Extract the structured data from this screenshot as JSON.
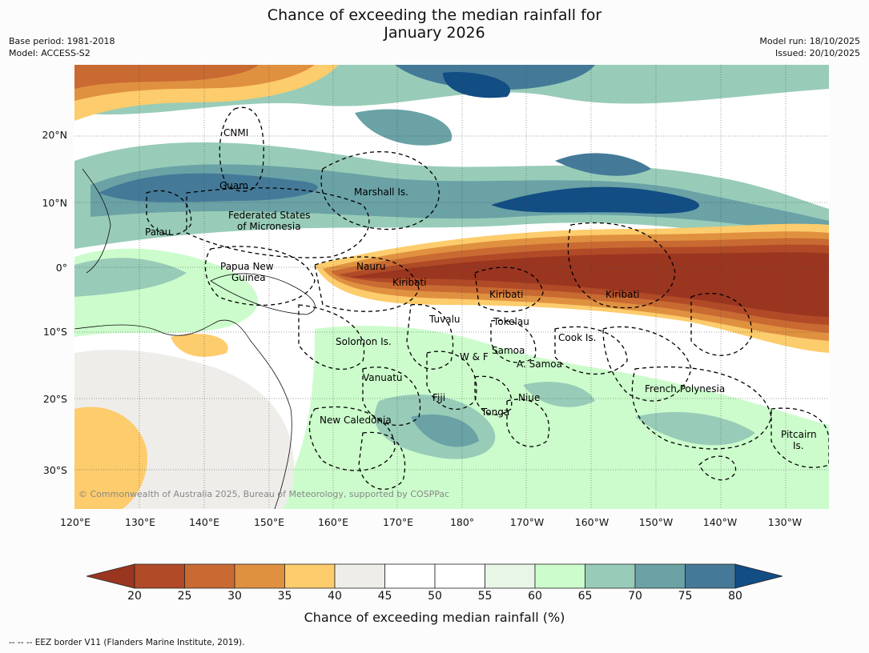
{
  "title_line1": "Chance of exceeding the median rainfall for",
  "title_line2": "January 2026",
  "meta_left": {
    "base_period": "Base period: 1981-2018",
    "model": "Model: ACCESS-S2"
  },
  "meta_right": {
    "model_run": "Model run: 18/10/2025",
    "issued": "Issued: 20/10/2025"
  },
  "lat_ticks": [
    "20°N",
    "10°N",
    "0°",
    "10°S",
    "20°S",
    "30°S"
  ],
  "lon_ticks": [
    "120°E",
    "130°E",
    "140°E",
    "150°E",
    "160°E",
    "170°E",
    "180°",
    "170°W",
    "160°W",
    "150°W",
    "140°W",
    "130°W"
  ],
  "regions": [
    "CNMI",
    "Guam",
    "Marshall Is.",
    "Federated States",
    "of Micronesia",
    "Palau",
    "Papua New",
    "Guinea",
    "Nauru",
    "Kiribati",
    "Kiribati",
    "Kiribati",
    "Tuvalu",
    "Tokelau",
    "Cook Is.",
    "Solomon Is.",
    "W & F",
    "Samoa",
    "A. Samoa",
    "Vanuatu",
    "Fiji",
    "Niue",
    "Tonga",
    "French Polynesia",
    "New Caledonia",
    "Pitcairn",
    "Is."
  ],
  "copyright": "© Commonwealth of Australia 2025, Bureau of Meteorology, supported by COSPPac",
  "colorbar": {
    "ticks": [
      "20",
      "25",
      "30",
      "35",
      "40",
      "45",
      "50",
      "55",
      "60",
      "65",
      "70",
      "75",
      "80"
    ],
    "colors": [
      "#9a3520",
      "#b04a27",
      "#c86a32",
      "#e09140",
      "#fdcc6c",
      "#efedea",
      "#ffffff",
      "#ffffff",
      "#e8f6e8",
      "#ccfccc",
      "#98ccb8",
      "#6aa2a6",
      "#447a98",
      "#124d84"
    ],
    "label": "Chance of exceeding median rainfall (%)"
  },
  "footer": "--  --  -- EEZ border V11 (Flanders Marine Institute, 2019)."
}
